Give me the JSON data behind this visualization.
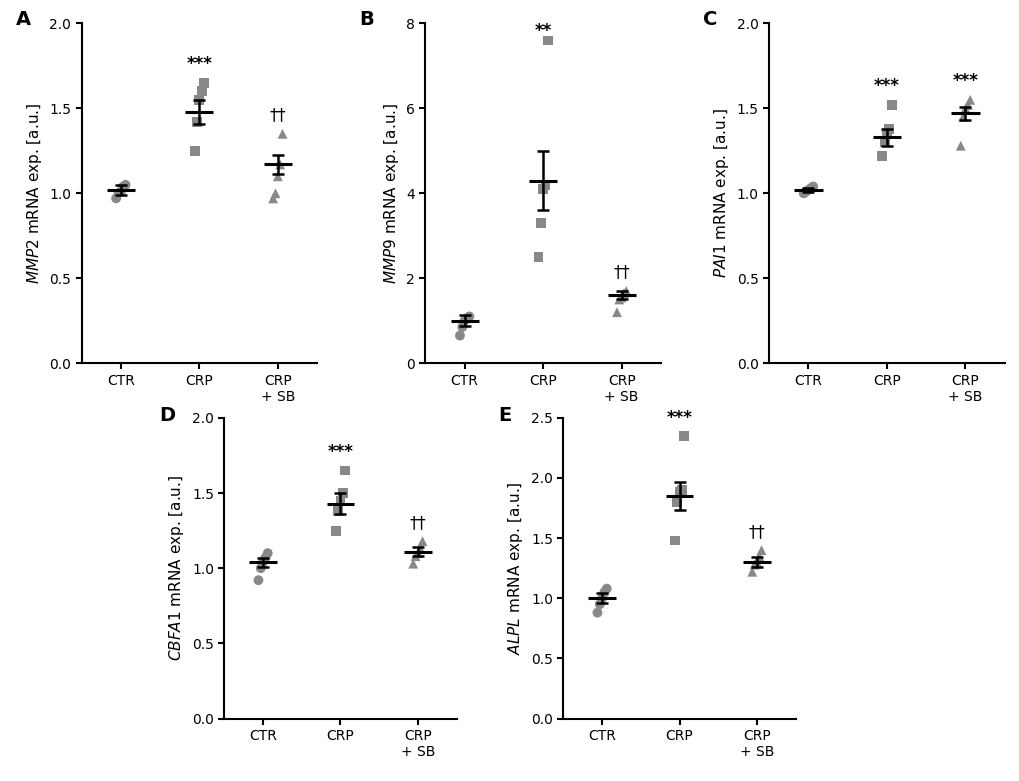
{
  "panels": [
    {
      "label": "A",
      "gene": "MMP2",
      "ylim": [
        0.0,
        2.0
      ],
      "yticks": [
        0.0,
        0.5,
        1.0,
        1.5,
        2.0
      ],
      "groups": [
        "CTR",
        "CRP",
        "CRP\n+ SB"
      ],
      "means": [
        1.02,
        1.48,
        1.17
      ],
      "sems": [
        0.03,
        0.07,
        0.055
      ],
      "dots": [
        [
          0.97,
          1.0,
          1.01,
          1.04,
          1.05
        ],
        [
          1.25,
          1.42,
          1.55,
          1.6,
          1.65
        ],
        [
          0.97,
          1.0,
          1.1,
          1.17,
          1.35
        ]
      ],
      "markers": [
        "o",
        "s",
        "^"
      ],
      "sig_labels": [
        null,
        "***",
        "††"
      ]
    },
    {
      "label": "B",
      "gene": "MMP9",
      "ylim": [
        0.0,
        8.0
      ],
      "yticks": [
        0,
        2,
        4,
        6,
        8
      ],
      "groups": [
        "CTR",
        "CRP",
        "CRP\n+ SB"
      ],
      "means": [
        1.0,
        4.3,
        1.6
      ],
      "sems": [
        0.13,
        0.7,
        0.1
      ],
      "dots": [
        [
          0.65,
          0.85,
          1.0,
          1.05,
          1.1
        ],
        [
          2.5,
          3.3,
          4.1,
          4.2,
          7.6
        ],
        [
          1.2,
          1.5,
          1.55,
          1.65,
          1.7
        ]
      ],
      "markers": [
        "o",
        "s",
        "^"
      ],
      "sig_labels": [
        null,
        "**",
        "††"
      ]
    },
    {
      "label": "C",
      "gene": "PAI1",
      "ylim": [
        0.0,
        2.0
      ],
      "yticks": [
        0.0,
        0.5,
        1.0,
        1.5,
        2.0
      ],
      "groups": [
        "CTR",
        "CRP",
        "CRP\n+ SB"
      ],
      "means": [
        1.02,
        1.33,
        1.47
      ],
      "sems": [
        0.01,
        0.05,
        0.04
      ],
      "dots": [
        [
          1.0,
          1.01,
          1.02,
          1.03,
          1.04
        ],
        [
          1.22,
          1.3,
          1.35,
          1.38,
          1.52
        ],
        [
          1.28,
          1.45,
          1.5,
          1.52,
          1.55
        ]
      ],
      "markers": [
        "o",
        "s",
        "^"
      ],
      "sig_labels": [
        null,
        "***",
        "***"
      ]
    },
    {
      "label": "D",
      "gene": "CBFA1",
      "ylim": [
        0.0,
        2.0
      ],
      "yticks": [
        0.0,
        0.5,
        1.0,
        1.5,
        2.0
      ],
      "groups": [
        "CTR",
        "CRP",
        "CRP\n+ SB"
      ],
      "means": [
        1.04,
        1.43,
        1.11
      ],
      "sems": [
        0.03,
        0.07,
        0.03
      ],
      "dots": [
        [
          0.92,
          1.0,
          1.04,
          1.07,
          1.1
        ],
        [
          1.25,
          1.38,
          1.45,
          1.5,
          1.65
        ],
        [
          1.03,
          1.08,
          1.1,
          1.13,
          1.18
        ]
      ],
      "markers": [
        "o",
        "s",
        "^"
      ],
      "sig_labels": [
        null,
        "***",
        "††"
      ]
    },
    {
      "label": "E",
      "gene": "ALPL",
      "ylim": [
        0.0,
        2.5
      ],
      "yticks": [
        0.0,
        0.5,
        1.0,
        1.5,
        2.0,
        2.5
      ],
      "groups": [
        "CTR",
        "CRP",
        "CRP\n+ SB"
      ],
      "means": [
        1.0,
        1.85,
        1.3
      ],
      "sems": [
        0.04,
        0.12,
        0.04
      ],
      "dots": [
        [
          0.88,
          0.95,
          1.0,
          1.05,
          1.08
        ],
        [
          1.48,
          1.8,
          1.88,
          1.9,
          2.35
        ],
        [
          1.22,
          1.28,
          1.3,
          1.35,
          1.4
        ]
      ],
      "markers": [
        "o",
        "s",
        "^"
      ],
      "sig_labels": [
        null,
        "***",
        "††"
      ]
    }
  ],
  "dot_color": "#888888",
  "mean_color": "#000000",
  "dot_size": 50,
  "jitter": [
    -0.06,
    -0.03,
    0.0,
    0.03,
    0.06
  ],
  "mean_halfwidth": 0.18,
  "font_size": 11,
  "tick_font_size": 10,
  "panel_label_size": 14,
  "sig_font_size": 12
}
